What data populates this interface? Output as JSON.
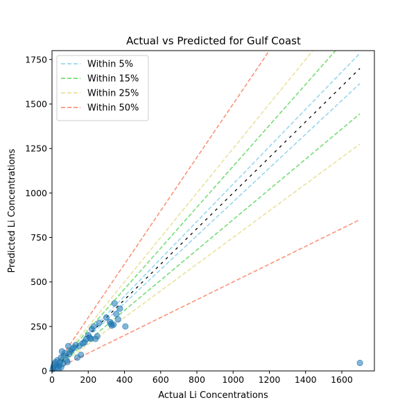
{
  "chart_data": {
    "type": "scatter",
    "title": "Actual vs Predicted for Gulf Coast",
    "xlabel": "Actual Li Concentrations",
    "ylabel": "Predicted Li Concentrations",
    "xlim": [
      0,
      1780
    ],
    "ylim": [
      0,
      1800
    ],
    "xticks": [
      0,
      200,
      400,
      600,
      800,
      1000,
      1200,
      1400,
      1600
    ],
    "yticks": [
      0,
      250,
      500,
      750,
      1000,
      1250,
      1500,
      1750
    ],
    "grid": false,
    "legend_position": "top-left",
    "ideal_line": {
      "x": [
        0,
        1700
      ],
      "y": [
        0,
        1700
      ],
      "color": "#000000"
    },
    "bands": [
      {
        "name": "Within 5%",
        "fraction": 0.05,
        "color": "#87ceeb"
      },
      {
        "name": "Within 15%",
        "fraction": 0.15,
        "color": "#5cd65c"
      },
      {
        "name": "Within 25%",
        "fraction": 0.25,
        "color": "#e6dc8c"
      },
      {
        "name": "Within 50%",
        "fraction": 0.5,
        "color": "#fa8060"
      }
    ],
    "point_color": "#1f77b4",
    "points": [
      [
        5,
        10
      ],
      [
        8,
        18
      ],
      [
        10,
        30
      ],
      [
        15,
        40
      ],
      [
        20,
        50
      ],
      [
        25,
        20
      ],
      [
        30,
        60
      ],
      [
        35,
        15
      ],
      [
        40,
        30
      ],
      [
        45,
        50
      ],
      [
        50,
        20
      ],
      [
        50,
        75
      ],
      [
        55,
        110
      ],
      [
        60,
        40
      ],
      [
        65,
        85
      ],
      [
        70,
        100
      ],
      [
        80,
        60
      ],
      [
        85,
        50
      ],
      [
        90,
        140
      ],
      [
        95,
        95
      ],
      [
        100,
        110
      ],
      [
        110,
        120
      ],
      [
        120,
        130
      ],
      [
        130,
        145
      ],
      [
        140,
        75
      ],
      [
        150,
        140
      ],
      [
        160,
        90
      ],
      [
        170,
        155
      ],
      [
        180,
        160
      ],
      [
        190,
        180
      ],
      [
        200,
        200
      ],
      [
        210,
        185
      ],
      [
        215,
        180
      ],
      [
        220,
        235
      ],
      [
        230,
        250
      ],
      [
        240,
        180
      ],
      [
        250,
        195
      ],
      [
        260,
        270
      ],
      [
        300,
        300
      ],
      [
        320,
        275
      ],
      [
        325,
        265
      ],
      [
        330,
        255
      ],
      [
        340,
        260
      ],
      [
        345,
        380
      ],
      [
        355,
        320
      ],
      [
        365,
        290
      ],
      [
        375,
        350
      ],
      [
        405,
        250
      ],
      [
        1700,
        45
      ]
    ]
  }
}
